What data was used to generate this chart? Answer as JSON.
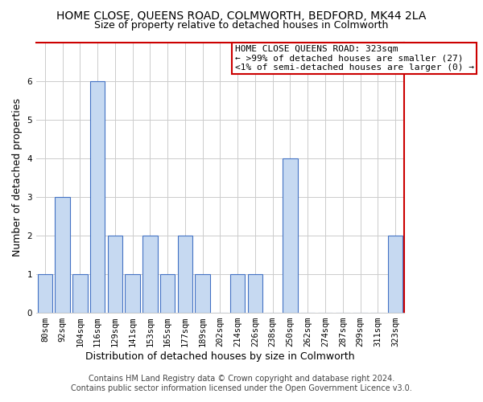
{
  "title": "HOME CLOSE, QUEENS ROAD, COLMWORTH, BEDFORD, MK44 2LA",
  "subtitle": "Size of property relative to detached houses in Colmworth",
  "xlabel": "Distribution of detached houses by size in Colmworth",
  "ylabel": "Number of detached properties",
  "bar_labels": [
    "80sqm",
    "92sqm",
    "104sqm",
    "116sqm",
    "129sqm",
    "141sqm",
    "153sqm",
    "165sqm",
    "177sqm",
    "189sqm",
    "202sqm",
    "214sqm",
    "226sqm",
    "238sqm",
    "250sqm",
    "262sqm",
    "274sqm",
    "287sqm",
    "299sqm",
    "311sqm",
    "323sqm"
  ],
  "bar_values": [
    1,
    3,
    1,
    6,
    2,
    1,
    2,
    1,
    2,
    1,
    0,
    1,
    1,
    0,
    4,
    0,
    0,
    0,
    0,
    0,
    2
  ],
  "bar_color": "#c6d9f1",
  "bar_edge_color": "#4472c4",
  "highlight_index": 20,
  "ylim": [
    0,
    7
  ],
  "yticks": [
    0,
    1,
    2,
    3,
    4,
    5,
    6
  ],
  "grid_color": "#cccccc",
  "bg_color": "#ffffff",
  "annotation_title": "HOME CLOSE QUEENS ROAD: 323sqm",
  "annotation_line1": "← >99% of detached houses are smaller (27)",
  "annotation_line2": "<1% of semi-detached houses are larger (0) →",
  "annotation_box_color": "#ffffff",
  "annotation_border_color": "#cc0000",
  "plot_border_color": "#cc0000",
  "footer_line1": "Contains HM Land Registry data © Crown copyright and database right 2024.",
  "footer_line2": "Contains public sector information licensed under the Open Government Licence v3.0.",
  "title_fontsize": 10,
  "subtitle_fontsize": 9,
  "axis_label_fontsize": 9,
  "tick_fontsize": 7.5,
  "annotation_fontsize": 8,
  "footer_fontsize": 7
}
